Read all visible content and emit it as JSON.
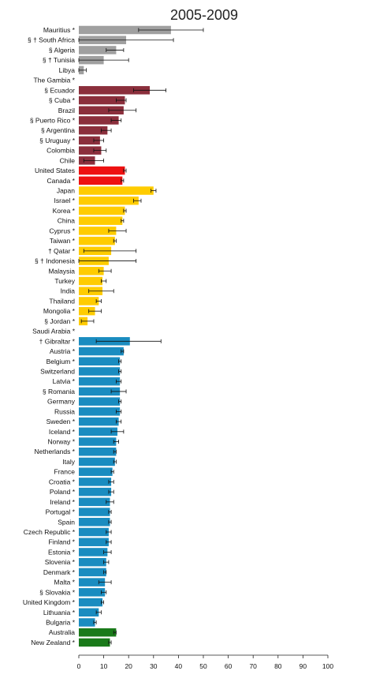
{
  "chart_data": {
    "type": "bar",
    "orientation": "horizontal",
    "title": "2005-2009",
    "xlim": [
      0,
      100
    ],
    "xticks": [
      "0",
      "10",
      "20",
      "30",
      "40",
      "50",
      "60",
      "70",
      "80",
      "90",
      "100"
    ],
    "grid": false,
    "groups": [
      {
        "color": "#a0a0a0",
        "items": [
          {
            "label": "Mauritius *",
            "value": 37,
            "err": [
              24,
              50
            ]
          },
          {
            "label": "§ † South Africa",
            "value": 19,
            "err": [
              0,
              38
            ]
          },
          {
            "label": "§ Algeria",
            "value": 15,
            "err": [
              11,
              18
            ]
          },
          {
            "label": "§ † Tunisia",
            "value": 10,
            "err": [
              0,
              20
            ]
          },
          {
            "label": "Libya",
            "value": 2,
            "err": [
              0,
              3
            ]
          },
          {
            "label": "The Gambia *",
            "value": 0,
            "err": null
          }
        ]
      },
      {
        "color": "#8b2f3c",
        "items": [
          {
            "label": "§ Ecuador",
            "value": 28.5,
            "err": [
              22,
              35
            ]
          },
          {
            "label": "§ Cuba *",
            "value": 18.5,
            "err": [
              15,
              19
            ]
          },
          {
            "label": "Brazil",
            "value": 18,
            "err": [
              12,
              23
            ]
          },
          {
            "label": "§ Puerto Rico *",
            "value": 16,
            "err": [
              13,
              17
            ]
          },
          {
            "label": "§ Argentina",
            "value": 11.5,
            "err": [
              9,
              13
            ]
          },
          {
            "label": "§ Uruguay *",
            "value": 8.5,
            "err": [
              6,
              10
            ]
          },
          {
            "label": "Colombia",
            "value": 9,
            "err": [
              6,
              11
            ]
          },
          {
            "label": "Chile",
            "value": 6.5,
            "err": [
              2,
              10
            ]
          }
        ]
      },
      {
        "color": "#ee1111",
        "items": [
          {
            "label": "United States",
            "value": 18.5,
            "err": [
              18,
              19
            ]
          },
          {
            "label": "Canada *",
            "value": 17.5,
            "err": [
              17,
              18
            ]
          }
        ]
      },
      {
        "color": "#ffcc00",
        "items": [
          {
            "label": "Japan",
            "value": 30,
            "err": [
              29,
              31
            ]
          },
          {
            "label": "Israel *",
            "value": 24,
            "err": [
              22,
              25
            ]
          },
          {
            "label": "Korea *",
            "value": 18.5,
            "err": [
              18,
              19
            ]
          },
          {
            "label": "China",
            "value": 17.5,
            "err": [
              17,
              18
            ]
          },
          {
            "label": "Cyprus *",
            "value": 15,
            "err": [
              12,
              19
            ]
          },
          {
            "label": "Taiwan *",
            "value": 14.5,
            "err": [
              14,
              15
            ]
          },
          {
            "label": "† Qatar *",
            "value": 13,
            "err": [
              2,
              23
            ]
          },
          {
            "label": "§ † Indonesia",
            "value": 12,
            "err": [
              0,
              23
            ]
          },
          {
            "label": "Malaysia",
            "value": 10,
            "err": [
              8,
              13
            ]
          },
          {
            "label": "Turkey",
            "value": 9.5,
            "err": [
              9,
              11
            ]
          },
          {
            "label": "India",
            "value": 9.5,
            "err": [
              4,
              14
            ]
          },
          {
            "label": "Thailand",
            "value": 8,
            "err": [
              7,
              9
            ]
          },
          {
            "label": "Mongolia *",
            "value": 6.5,
            "err": [
              4,
              9
            ]
          },
          {
            "label": "§ Jordan *",
            "value": 3.5,
            "err": [
              1,
              6
            ]
          },
          {
            "label": "Saudi Arabia *",
            "value": 0,
            "err": null
          }
        ]
      },
      {
        "color": "#1a8cc0",
        "items": [
          {
            "label": "† Gibraltar *",
            "value": 20.5,
            "err": [
              7,
              33
            ]
          },
          {
            "label": "Austria *",
            "value": 18,
            "err": [
              17,
              18
            ]
          },
          {
            "label": "Belgium *",
            "value": 16.5,
            "err": [
              16,
              17
            ]
          },
          {
            "label": "Switzerland",
            "value": 16.5,
            "err": [
              16,
              17
            ]
          },
          {
            "label": "Latvia *",
            "value": 16.5,
            "err": [
              15,
              17
            ]
          },
          {
            "label": "§ Romania",
            "value": 16.5,
            "err": [
              13,
              19
            ]
          },
          {
            "label": "Germany",
            "value": 16.5,
            "err": [
              16,
              17
            ]
          },
          {
            "label": "Russia",
            "value": 16.5,
            "err": [
              15,
              17
            ]
          },
          {
            "label": "Sweden *",
            "value": 16,
            "err": [
              15,
              17
            ]
          },
          {
            "label": "Iceland *",
            "value": 15.5,
            "err": [
              13,
              18
            ]
          },
          {
            "label": "Norway *",
            "value": 15,
            "err": [
              14,
              16
            ]
          },
          {
            "label": "Netherlands *",
            "value": 15,
            "err": [
              14,
              15
            ]
          },
          {
            "label": "Italy",
            "value": 14.5,
            "err": [
              14,
              15
            ]
          },
          {
            "label": "France",
            "value": 13.5,
            "err": [
              13,
              14
            ]
          },
          {
            "label": "Croatia *",
            "value": 13,
            "err": [
              12,
              14
            ]
          },
          {
            "label": "Poland *",
            "value": 13,
            "err": [
              12,
              14
            ]
          },
          {
            "label": "Ireland *",
            "value": 12.5,
            "err": [
              11,
              14
            ]
          },
          {
            "label": "Portugal *",
            "value": 12.5,
            "err": [
              12,
              13
            ]
          },
          {
            "label": "Spain",
            "value": 12.5,
            "err": [
              12,
              13
            ]
          },
          {
            "label": "Czech Republic *",
            "value": 12,
            "err": [
              11,
              13
            ]
          },
          {
            "label": "Finland *",
            "value": 12,
            "err": [
              11,
              13
            ]
          },
          {
            "label": "Estonia *",
            "value": 11.5,
            "err": [
              10,
              13
            ]
          },
          {
            "label": "Slovenia *",
            "value": 11,
            "err": [
              10,
              12
            ]
          },
          {
            "label": "Denmark *",
            "value": 11,
            "err": [
              10,
              11
            ]
          },
          {
            "label": "Malta *",
            "value": 10.5,
            "err": [
              8,
              13
            ]
          },
          {
            "label": "§ Slovakia *",
            "value": 10.5,
            "err": [
              9,
              11
            ]
          },
          {
            "label": "United Kingdom *",
            "value": 9.5,
            "err": [
              9,
              10
            ]
          },
          {
            "label": "Lithuania *",
            "value": 8,
            "err": [
              7,
              9
            ]
          },
          {
            "label": "Bulgaria *",
            "value": 6.5,
            "err": [
              6,
              7
            ]
          }
        ]
      },
      {
        "color": "#1a7a1a",
        "items": [
          {
            "label": "Australia",
            "value": 15,
            "err": [
              14,
              15
            ]
          },
          {
            "label": "New Zealand *",
            "value": 12.5,
            "err": [
              12,
              13
            ]
          }
        ]
      }
    ]
  }
}
